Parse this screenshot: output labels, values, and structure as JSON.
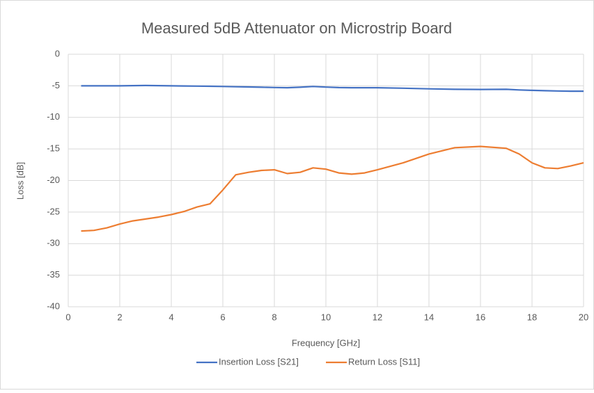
{
  "chart_data": {
    "type": "line",
    "title": "Measured 5dB Attenuator on Microstrip Board",
    "x_label": "Frequency [GHz]",
    "y_label": "Loss [dB]",
    "x": [
      0.5,
      1,
      1.5,
      2,
      2.5,
      3,
      3.5,
      4,
      4.5,
      5,
      5.5,
      6,
      6.5,
      7,
      7.5,
      8,
      8.5,
      9,
      9.5,
      10,
      10.5,
      11,
      11.5,
      12,
      13,
      14,
      15,
      16,
      17,
      17.5,
      18,
      18.5,
      19,
      19.5,
      20
    ],
    "series": [
      {
        "name": "Insertion Loss [S21]",
        "color": "#4472c4",
        "values": [
          -5.0,
          -5.0,
          -5.0,
          -5.0,
          -4.97,
          -4.95,
          -4.97,
          -5.0,
          -5.02,
          -5.05,
          -5.07,
          -5.1,
          -5.15,
          -5.18,
          -5.22,
          -5.27,
          -5.3,
          -5.22,
          -5.1,
          -5.2,
          -5.28,
          -5.3,
          -5.3,
          -5.3,
          -5.38,
          -5.48,
          -5.55,
          -5.58,
          -5.55,
          -5.65,
          -5.72,
          -5.77,
          -5.82,
          -5.85,
          -5.85
        ]
      },
      {
        "name": "Return Loss [S11]",
        "color": "#ed7d31",
        "values": [
          -28.0,
          -27.9,
          -27.5,
          -26.9,
          -26.4,
          -26.1,
          -25.8,
          -25.4,
          -24.9,
          -24.2,
          -23.7,
          -21.5,
          -19.1,
          -18.7,
          -18.4,
          -18.3,
          -18.9,
          -18.7,
          -18.0,
          -18.2,
          -18.8,
          -19.0,
          -18.8,
          -18.3,
          -17.2,
          -15.8,
          -14.8,
          -14.6,
          -14.9,
          -15.8,
          -17.2,
          -18.0,
          -18.1,
          -17.7,
          -17.2
        ]
      }
    ],
    "xlim": [
      0,
      20
    ],
    "xticks": [
      0,
      2,
      4,
      6,
      8,
      10,
      12,
      14,
      16,
      18,
      20
    ],
    "ylim": [
      -40,
      0
    ],
    "yticks": [
      -40,
      -35,
      -30,
      -25,
      -20,
      -15,
      -10,
      -5,
      0
    ],
    "grid": true,
    "legend": "bottom"
  }
}
